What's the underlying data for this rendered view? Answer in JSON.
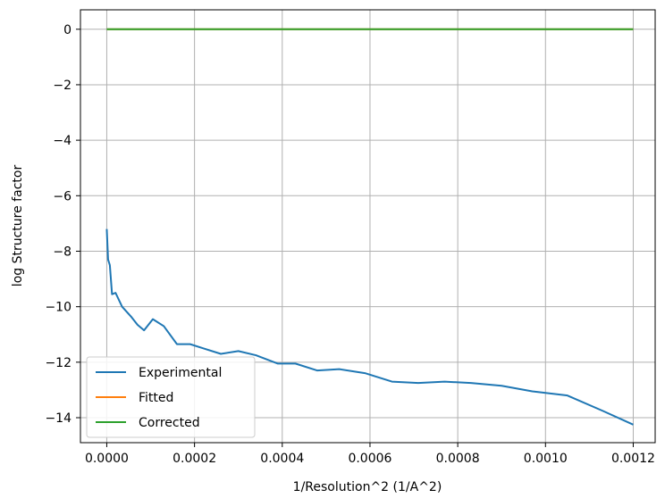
{
  "chart_data": {
    "type": "line",
    "title": "",
    "xlabel": "1/Resolution^2 (1/A^2)",
    "ylabel": "log Structure factor",
    "xlim": [
      -6e-05,
      0.00125
    ],
    "ylim": [
      -14.9,
      0.7
    ],
    "xticks": [
      0.0,
      0.0002,
      0.0004,
      0.0006,
      0.0008,
      0.001,
      0.0012
    ],
    "xtick_labels": [
      "0.0000",
      "0.0002",
      "0.0004",
      "0.0006",
      "0.0008",
      "0.0010",
      "0.0012"
    ],
    "yticks": [
      0,
      -2,
      -4,
      -6,
      -8,
      -10,
      -12,
      -14
    ],
    "ytick_labels": [
      "0",
      "−2",
      "−4",
      "−6",
      "−8",
      "−10",
      "−12",
      "−14"
    ],
    "grid": true,
    "legend_position": "lower-left",
    "series": [
      {
        "name": "Experimental",
        "color": "#1f77b4",
        "x": [
          0.0,
          3e-06,
          7e-06,
          1.2e-05,
          2e-05,
          3.5e-05,
          5.5e-05,
          7e-05,
          8.5e-05,
          0.000105,
          0.00013,
          0.00016,
          0.00019,
          0.00022,
          0.00026,
          0.0003,
          0.00034,
          0.00039,
          0.00043,
          0.00048,
          0.00053,
          0.00059,
          0.00065,
          0.00071,
          0.00077,
          0.00083,
          0.0009,
          0.00097,
          0.00105,
          0.00113,
          0.0012
        ],
        "y": [
          -7.2,
          -8.3,
          -8.5,
          -9.55,
          -9.5,
          -10.0,
          -10.35,
          -10.65,
          -10.85,
          -10.45,
          -10.7,
          -11.35,
          -11.35,
          -11.5,
          -11.7,
          -11.6,
          -11.75,
          -12.05,
          -12.05,
          -12.3,
          -12.25,
          -12.4,
          -12.7,
          -12.75,
          -12.7,
          -12.75,
          -12.85,
          -13.05,
          -13.2,
          -13.75,
          -14.25
        ]
      },
      {
        "name": "Fitted",
        "color": "#ff7f0e",
        "x": [
          0.0,
          0.0012
        ],
        "y": [
          0.0,
          0.0
        ]
      },
      {
        "name": "Corrected",
        "color": "#2ca02c",
        "x": [
          0.0,
          0.0012
        ],
        "y": [
          0.0,
          0.0
        ]
      }
    ]
  }
}
